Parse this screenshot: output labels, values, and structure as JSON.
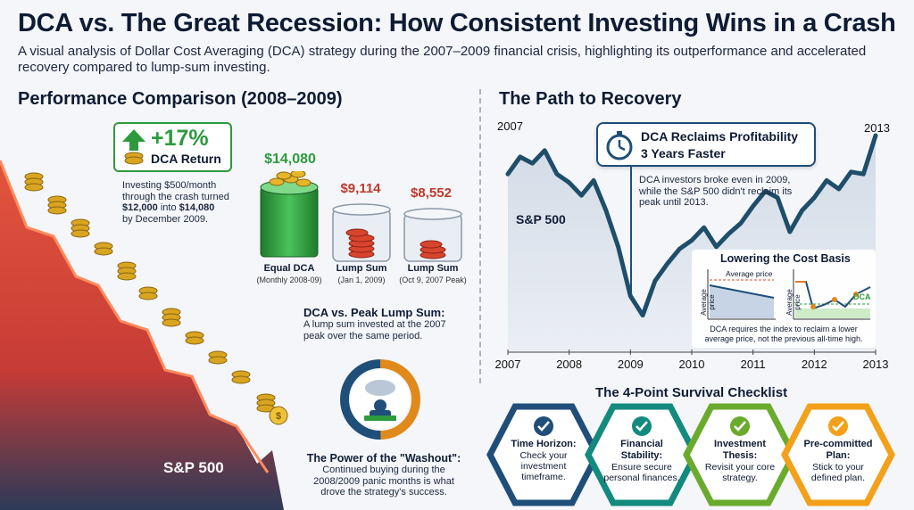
{
  "header": {
    "title": "DCA vs. The Great Recession: How Consistent Investing Wins in a Crash",
    "subtitle": "A visual analysis of Dollar Cost Averaging (DCA) strategy during the 2007–2009 financial crisis, highlighting its outperformance and accelerated recovery compared to lump-sum investing."
  },
  "left": {
    "section_title": "Performance Comparison (2008–2009)",
    "return_badge": {
      "value": "+17%",
      "label": "DCA Return"
    },
    "return_desc": {
      "line1": "Investing $500/month",
      "line2": "through the crash turned",
      "line3_bold_a": "$12,000",
      "line3_mid": " into ",
      "line3_bold_b": "$14,080",
      "line4": "by December 2009."
    },
    "glasses": [
      {
        "value": "$14,080",
        "label": "Equal DCA",
        "sub": "(Monthly 2008-09)",
        "color": "#2e9a3e"
      },
      {
        "value": "$9,114",
        "label": "Lump Sum",
        "sub": "(Jan 1, 2009)",
        "color": "#c0392b"
      },
      {
        "value": "$8,552",
        "label": "Lump Sum",
        "sub": "(Oct 9, 2007 Peak)",
        "color": "#c0392b"
      }
    ],
    "peak_note": {
      "title": "DCA vs. Peak Lump Sum:",
      "body_line1": "A lump sum invested at the 2007",
      "body_line2": "peak over the same period."
    },
    "washout": {
      "title": "The Power of the \"Washout\":",
      "line1": "Continued buying during the",
      "line2": "2008/2009 panic months is what",
      "line3": "drove the strategy's success."
    },
    "crash_label": "S&P 500",
    "colors": {
      "green": "#2e9a3e",
      "red": "#c0392b",
      "gold": "#d9a521",
      "navy": "#0e1b33"
    }
  },
  "right": {
    "section_title": "The Path to Recovery",
    "year_start": "2007",
    "year_end": "2013",
    "sp_label": "S&P 500",
    "callout": {
      "title_line1": "DCA Reclaims Profitability",
      "title_line2": "3 Years Faster",
      "body_line1": "DCA investors broke even in 2009,",
      "body_line2": "while the S&P 500 didn't reclaim its",
      "body_line3": "peak until 2013."
    },
    "cost_basis": {
      "title": "Lowering the Cost Basis",
      "left_axis": "Average price",
      "left_legend": "Average price",
      "right_axis": "Average price",
      "right_legend": "DCA",
      "caption_line1": "DCA requires the index to reclaim a lower",
      "caption_line2": "average price, not the previous all-time high."
    },
    "x_ticks": [
      "2007",
      "2008",
      "2009",
      "2010",
      "2011",
      "2012",
      "2013"
    ],
    "chart_data": {
      "type": "line",
      "series": [
        {
          "name": "S&P 500",
          "x": [
            2007.0,
            2007.2,
            2007.4,
            2007.6,
            2007.8,
            2008.0,
            2008.2,
            2008.4,
            2008.6,
            2008.8,
            2009.0,
            2009.2,
            2009.4,
            2009.6,
            2009.8,
            2010.0,
            2010.2,
            2010.4,
            2010.6,
            2010.8,
            2011.0,
            2011.2,
            2011.4,
            2011.6,
            2011.8,
            2012.0,
            2012.2,
            2012.4,
            2012.6,
            2012.8,
            2013.0
          ],
          "y": [
            1420,
            1500,
            1470,
            1530,
            1420,
            1380,
            1320,
            1390,
            1250,
            1080,
            850,
            760,
            920,
            1000,
            1070,
            1110,
            1170,
            1080,
            1140,
            1190,
            1270,
            1340,
            1310,
            1150,
            1250,
            1310,
            1390,
            1350,
            1430,
            1420,
            1600
          ]
        }
      ],
      "xlim": [
        2007,
        2013
      ],
      "ylim": [
        650,
        1650
      ]
    },
    "checklist_title": "The 4-Point Survival Checklist",
    "checklist": [
      {
        "head": "Time Horizon:",
        "body": "Check your investment timeframe.",
        "color": "#1f4e79"
      },
      {
        "head": "Financial Stability:",
        "body": "Ensure secure personal finances.",
        "color": "#138a7e"
      },
      {
        "head": "Investment Thesis:",
        "body": "Revisit your core strategy.",
        "color": "#6aab2e"
      },
      {
        "head": "Pre-committed Plan:",
        "body": "Stick to your defined plan.",
        "color": "#f3a01a"
      }
    ]
  }
}
